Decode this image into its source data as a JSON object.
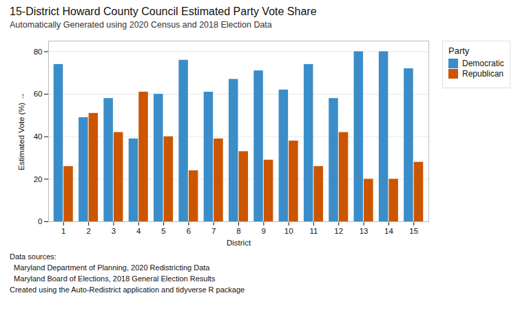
{
  "chart_data": {
    "type": "bar",
    "title": "15-District Howard County Council Estimated Party Vote Share",
    "subtitle": "Automatically Generated using 2020 Census and 2018 Election Data",
    "xlabel": "District",
    "ylabel": "Estimated Vote (%)",
    "categories": [
      "1",
      "2",
      "3",
      "4",
      "5",
      "6",
      "7",
      "8",
      "9",
      "10",
      "11",
      "12",
      "13",
      "14",
      "15"
    ],
    "series": [
      {
        "name": "Democratic",
        "color": "#3a8dc8",
        "values": [
          74,
          49,
          58,
          39,
          60,
          76,
          61,
          67,
          71,
          62,
          74,
          58,
          80,
          80,
          72
        ]
      },
      {
        "name": "Republican",
        "color": "#cc5500",
        "values": [
          26,
          51,
          42,
          61,
          40,
          24,
          39,
          33,
          29,
          38,
          26,
          42,
          20,
          20,
          28
        ]
      }
    ],
    "ylim": [
      0,
      85
    ],
    "yticks": [
      0,
      20,
      40,
      60,
      80
    ],
    "grid": true,
    "legend": "upper right",
    "legend_title": "Party",
    "footnote": [
      "Data sources:",
      "  Maryland Department of Planning, 2020 Redistricting Data",
      "  Maryland Board of Elections, 2018 General Election Results",
      "Created using the Auto-Redistrict application and tidyverse R package"
    ]
  }
}
